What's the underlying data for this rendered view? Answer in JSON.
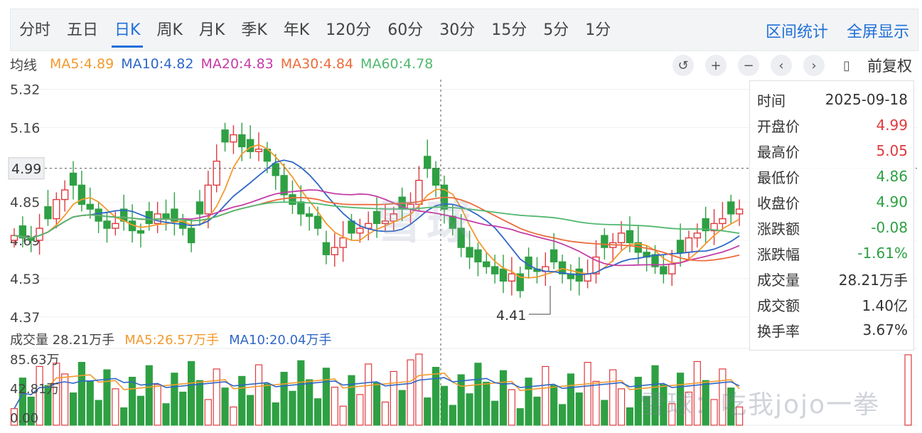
{
  "tabs": [
    {
      "label": "分时"
    },
    {
      "label": "五日"
    },
    {
      "label": "日K"
    },
    {
      "label": "周K"
    },
    {
      "label": "月K"
    },
    {
      "label": "季K"
    },
    {
      "label": "年K"
    },
    {
      "label": "120分"
    },
    {
      "label": "60分"
    },
    {
      "label": "30分"
    },
    {
      "label": "15分"
    },
    {
      "label": "5分"
    },
    {
      "label": "1分"
    }
  ],
  "active_tab": "日K",
  "actions": {
    "range_stats": "区间统计",
    "fullscreen": "全屏显示"
  },
  "ma_legend": {
    "title": "均线",
    "ma5": "MA5:4.89",
    "ma10": "MA10:4.82",
    "ma20": "MA20:4.83",
    "ma30": "MA30:4.84",
    "ma60": "MA60:4.78"
  },
  "toolbar": {
    "reset": "↺",
    "zoom_in": "+",
    "zoom_out": "−",
    "prev": "‹",
    "next": "›",
    "candle": "▯",
    "adjust": "前复权"
  },
  "colors": {
    "up": "#e0393e",
    "down": "#2ea043",
    "ma5": "#f39a2e",
    "ma10": "#2f67c6",
    "ma20": "#c43ca7",
    "ma30": "#ec6b3b",
    "ma60": "#52b86f",
    "accent": "#1e6fd9"
  },
  "price_axis": {
    "labels": [
      "5.32",
      "5.16",
      "4.99",
      "4.85",
      "4.69",
      "4.53",
      "4.37"
    ],
    "crosshair_price": "4.99",
    "low_marker": "4.41"
  },
  "volume_legend": {
    "total": "成交量 28.21万手",
    "ma5": "MA5:26.57万手",
    "ma10": "MA10:20.04万手"
  },
  "volume_axis": {
    "labels": [
      "85.63万",
      "42.81万",
      "0.00"
    ]
  },
  "info_panel": {
    "rows": [
      {
        "k": "时间",
        "v": "2025-09-18",
        "c": ""
      },
      {
        "k": "开盘价",
        "v": "4.99",
        "c": "up"
      },
      {
        "k": "最高价",
        "v": "5.05",
        "c": "up"
      },
      {
        "k": "最低价",
        "v": "4.86",
        "c": "down"
      },
      {
        "k": "收盘价",
        "v": "4.90",
        "c": "down"
      },
      {
        "k": "涨跌额",
        "v": "-0.08",
        "c": "down"
      },
      {
        "k": "涨跌幅",
        "v": "-1.61%",
        "c": "down"
      },
      {
        "k": "成交量",
        "v": "28.21万手",
        "c": ""
      },
      {
        "k": "成交额",
        "v": "1.40亿",
        "c": ""
      },
      {
        "k": "换手率",
        "v": "3.67%",
        "c": ""
      }
    ]
  },
  "watermark": "雪球：吃我jojo一拳",
  "logo_mark": "雪球"
}
